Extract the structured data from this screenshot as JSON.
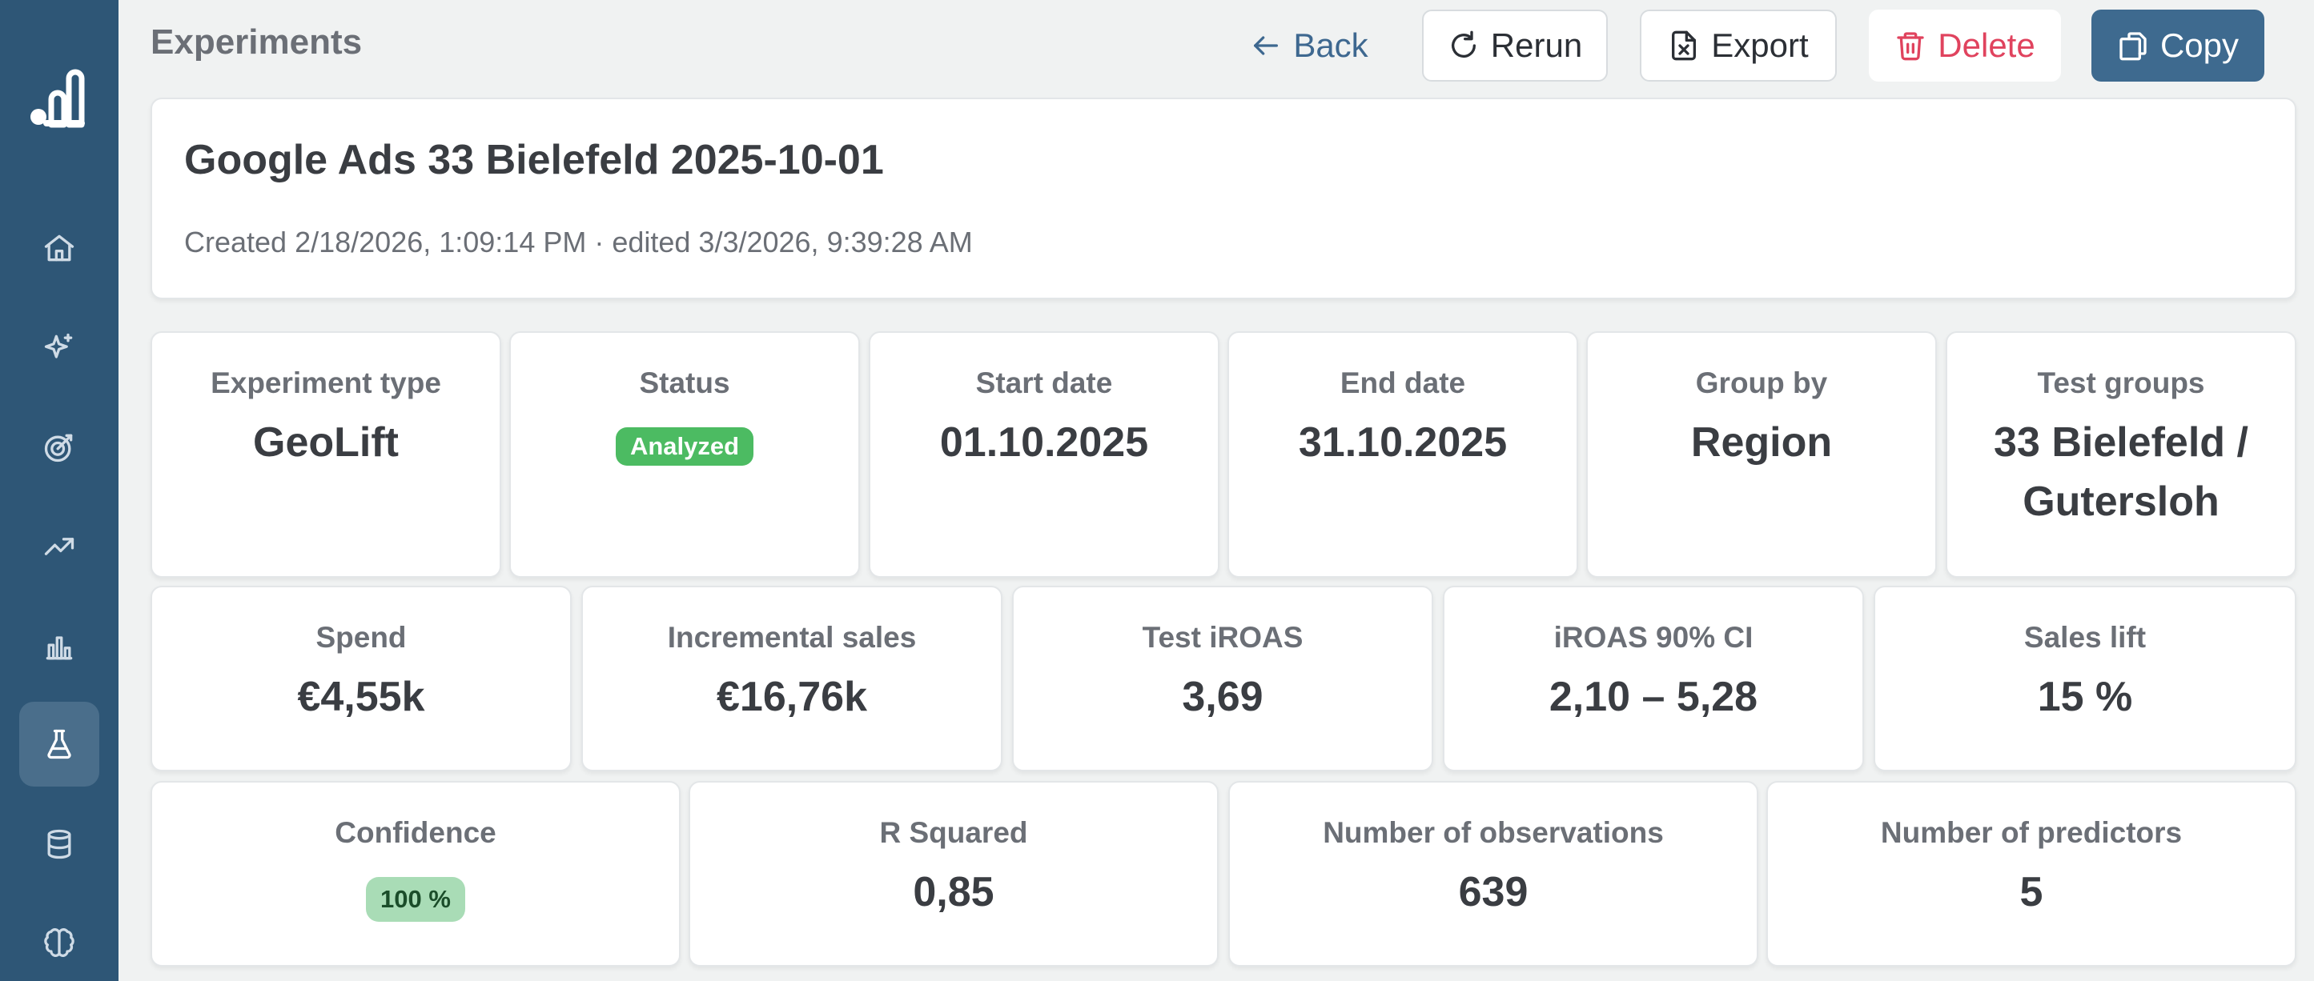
{
  "header": {
    "title": "Experiments",
    "back_label": "Back",
    "rerun_label": "Rerun",
    "export_label": "Export",
    "delete_label": "Delete",
    "copy_label": "Copy"
  },
  "experiment": {
    "name": "Google Ads 33 Bielefeld 2025-10-01",
    "meta": "Created 2/18/2026, 1:09:14 PM · edited 3/3/2026, 9:39:28 AM"
  },
  "stats_row1": [
    {
      "label": "Experiment type",
      "value": "GeoLift"
    },
    {
      "label": "Status",
      "value": "Analyzed"
    },
    {
      "label": "Start date",
      "value": "01.10.2025"
    },
    {
      "label": "End date",
      "value": "31.10.2025"
    },
    {
      "label": "Group by",
      "value": "Region"
    },
    {
      "label": "Test groups",
      "value": "33 Bielefeld / Gutersloh"
    }
  ],
  "stats_row2": [
    {
      "label": "Spend",
      "value": "€4,55k"
    },
    {
      "label": "Incremental sales",
      "value": "€16,76k"
    },
    {
      "label": "Test iROAS",
      "value": "3,69"
    },
    {
      "label": "iROAS 90% CI",
      "value": "2,10 – 5,28"
    },
    {
      "label": "Sales lift",
      "value": "15 %"
    }
  ],
  "stats_row3": [
    {
      "label": "Confidence",
      "value": "100 %"
    },
    {
      "label": "R Squared",
      "value": "0,85"
    },
    {
      "label": "Number of observations",
      "value": "639"
    },
    {
      "label": "Number of predictors",
      "value": "5"
    }
  ],
  "sidebar": {
    "items": [
      "home-icon",
      "sparkles-icon",
      "target-icon",
      "trending-icon",
      "bar-chart-icon",
      "flask-icon",
      "database-icon",
      "brain-icon"
    ],
    "active": "flask-icon"
  },
  "colors": {
    "sidebar": "#2e5676",
    "primary": "#3e6a8f",
    "danger": "#e0435e",
    "success": "#4cbb62"
  }
}
